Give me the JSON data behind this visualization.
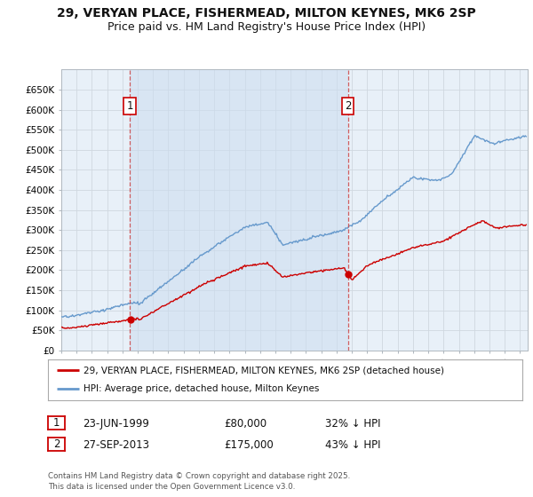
{
  "title": "29, VERYAN PLACE, FISHERMEAD, MILTON KEYNES, MK6 2SP",
  "subtitle": "Price paid vs. HM Land Registry's House Price Index (HPI)",
  "ylim": [
    0,
    700000
  ],
  "yticks": [
    0,
    50000,
    100000,
    150000,
    200000,
    250000,
    300000,
    350000,
    400000,
    450000,
    500000,
    550000,
    600000,
    650000
  ],
  "ytick_labels": [
    "£0",
    "£50K",
    "£100K",
    "£150K",
    "£200K",
    "£250K",
    "£300K",
    "£350K",
    "£400K",
    "£450K",
    "£500K",
    "£550K",
    "£600K",
    "£650K"
  ],
  "fig_bg_color": "#ffffff",
  "plot_bg_color": "#e8f0f8",
  "grid_color": "#c8d4e0",
  "red_line_color": "#cc0000",
  "blue_line_color": "#6699cc",
  "shade_color": "#d0e4f5",
  "marker1_date": 1999.48,
  "marker2_date": 2013.74,
  "legend_label1": "29, VERYAN PLACE, FISHERMEAD, MILTON KEYNES, MK6 2SP (detached house)",
  "legend_label2": "HPI: Average price, detached house, Milton Keynes",
  "table_row1": [
    "1",
    "23-JUN-1999",
    "£80,000",
    "32% ↓ HPI"
  ],
  "table_row2": [
    "2",
    "27-SEP-2013",
    "£175,000",
    "43% ↓ HPI"
  ],
  "footer": "Contains HM Land Registry data © Crown copyright and database right 2025.\nThis data is licensed under the Open Government Licence v3.0.",
  "title_fontsize": 10,
  "subtitle_fontsize": 9,
  "tick_fontsize": 7.5,
  "xmin": 1995.0,
  "xmax": 2025.5,
  "marker1_price": 80000,
  "marker2_price": 175000
}
